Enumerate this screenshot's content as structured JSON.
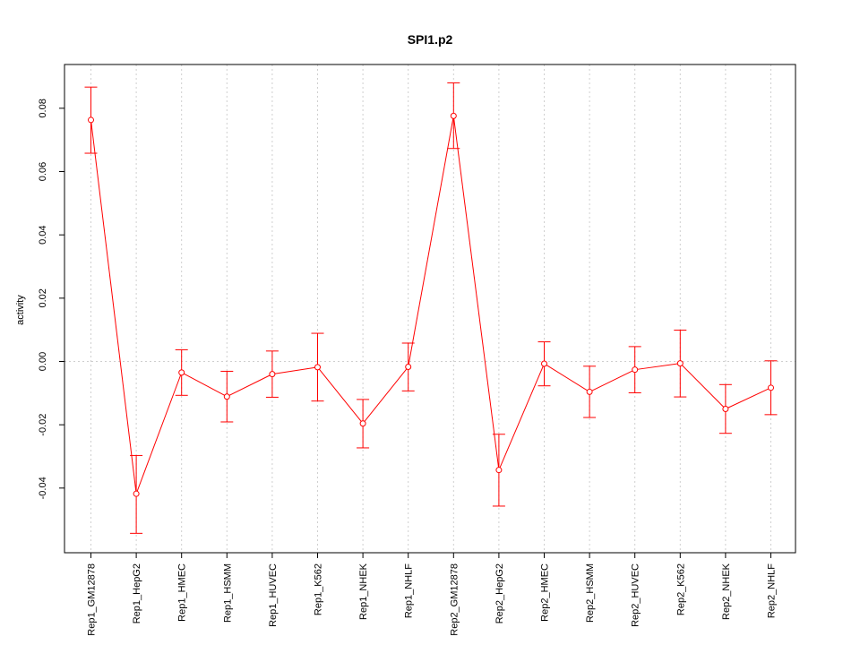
{
  "chart_data": {
    "type": "line",
    "title": "SPI1.p2",
    "xlabel": "",
    "ylabel": "activity",
    "ylim": [
      -0.06,
      0.093
    ],
    "yticks": [
      -0.04,
      -0.02,
      0.0,
      0.02,
      0.04,
      0.06,
      0.08
    ],
    "ytick_labels": [
      "-0.04",
      "-0.02",
      "0.00",
      "0.02",
      "0.04",
      "0.06",
      "0.08"
    ],
    "grid": true,
    "color": "#ff0000",
    "categories": [
      "Rep1_GM12878",
      "Rep1_HepG2",
      "Rep1_HMEC",
      "Rep1_HSMM",
      "Rep1_HUVEC",
      "Rep1_K562",
      "Rep1_NHEK",
      "Rep1_NHLF",
      "Rep2_GM12878",
      "Rep2_HepG2",
      "Rep2_HMEC",
      "Rep2_HSMM",
      "Rep2_HUVEC",
      "Rep2_K562",
      "Rep2_NHEK",
      "Rep2_NHLF"
    ],
    "values": [
      0.0763,
      -0.0418,
      -0.0035,
      -0.0111,
      -0.004,
      -0.0018,
      -0.0196,
      -0.0017,
      0.0776,
      -0.0343,
      -0.0007,
      -0.0096,
      -0.0026,
      -0.0006,
      -0.015,
      -0.0083
    ],
    "error_upper": [
      0.0867,
      -0.0297,
      0.0037,
      -0.0031,
      0.0033,
      0.0089,
      -0.012,
      0.0058,
      0.088,
      -0.023,
      0.0062,
      -0.0015,
      0.0047,
      0.0099,
      -0.0073,
      0.0002
    ],
    "error_lower": [
      0.0658,
      -0.0543,
      -0.0107,
      -0.0191,
      -0.0113,
      -0.0125,
      -0.0273,
      -0.0093,
      0.0673,
      -0.0457,
      -0.0077,
      -0.0177,
      -0.0099,
      -0.0112,
      -0.0227,
      -0.0168
    ]
  }
}
